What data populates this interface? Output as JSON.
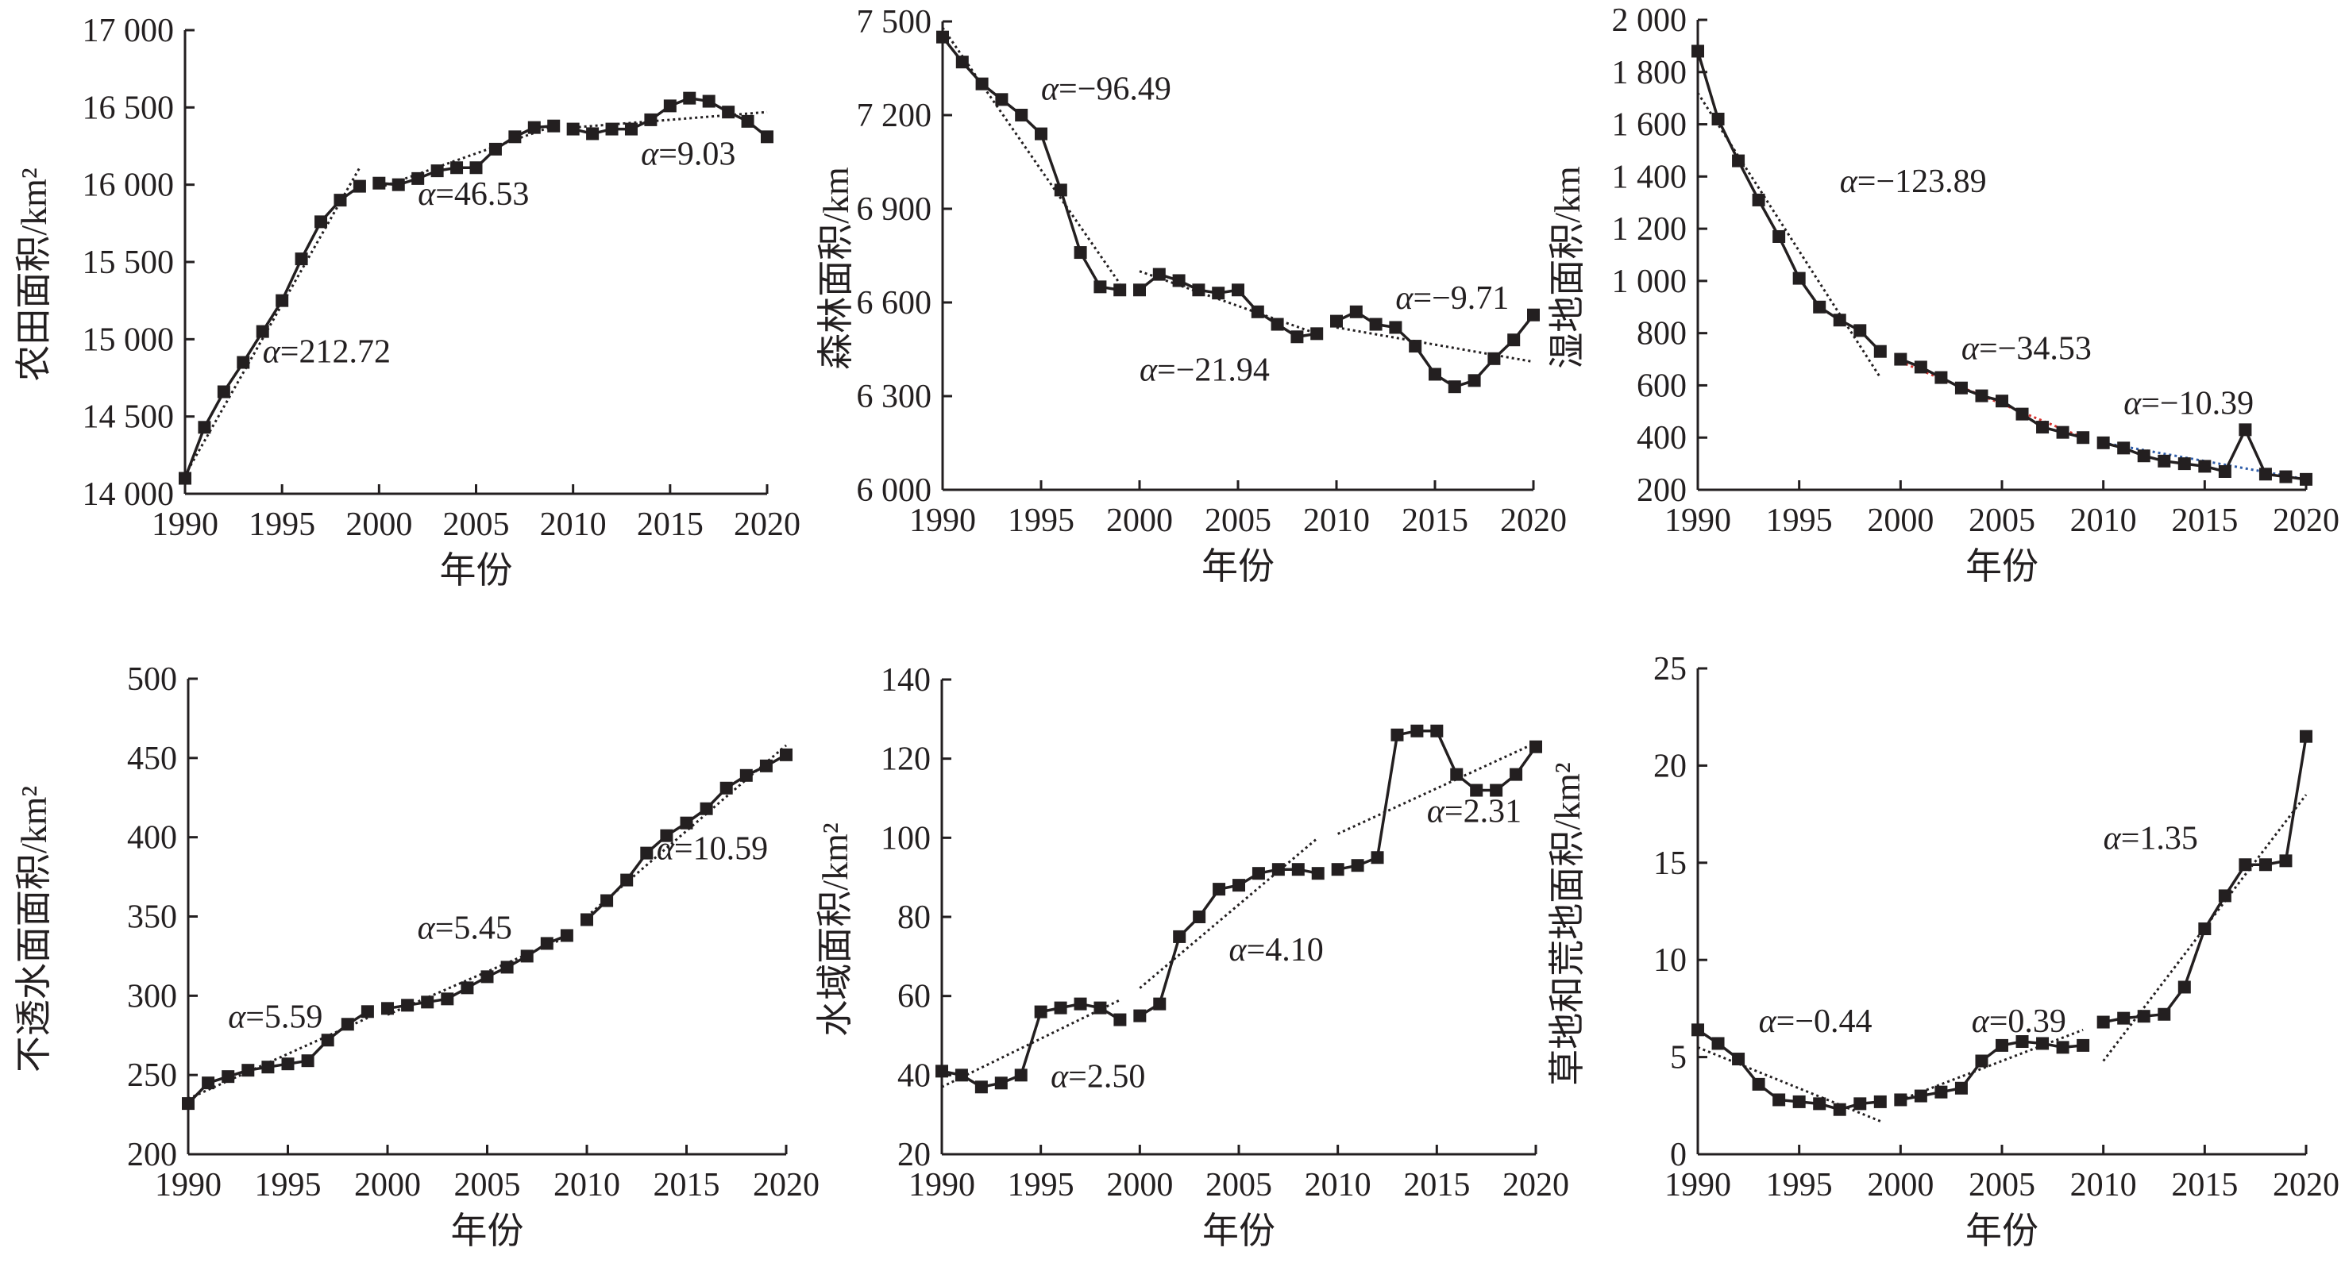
{
  "chart_data": [
    {
      "type": "line",
      "ylabel": "农田面积/km²",
      "xlabel": "年份",
      "xlim": [
        1990,
        2020
      ],
      "xticks": [
        1990,
        1995,
        2000,
        2005,
        2010,
        2015,
        2020
      ],
      "ylim": [
        14000,
        17000
      ],
      "yticks": [
        {
          "v": 14000,
          "label": "14 000"
        },
        {
          "v": 14500,
          "label": "14 500"
        },
        {
          "v": 15000,
          "label": "15 000"
        },
        {
          "v": 15500,
          "label": "15 500"
        },
        {
          "v": 16000,
          "label": "16 000"
        },
        {
          "v": 16500,
          "label": "16 500"
        },
        {
          "v": 17000,
          "label": "17 000"
        }
      ],
      "segments": [
        {
          "x": [
            1990,
            1991,
            1992,
            1993,
            1994,
            1995,
            1996,
            1997,
            1998,
            1999
          ],
          "y": [
            14100,
            14430,
            14660,
            14850,
            15050,
            15250,
            15520,
            15760,
            15900,
            15990
          ]
        },
        {
          "x": [
            2000,
            2001,
            2002,
            2003,
            2004,
            2005,
            2006,
            2007,
            2008,
            2009
          ],
          "y": [
            16010,
            16000,
            16040,
            16090,
            16110,
            16110,
            16230,
            16310,
            16370,
            16380
          ]
        },
        {
          "x": [
            2010,
            2011,
            2012,
            2013,
            2014,
            2015,
            2016,
            2017,
            2018,
            2019,
            2020
          ],
          "y": [
            16360,
            16330,
            16360,
            16360,
            16420,
            16510,
            16560,
            16540,
            16470,
            16410,
            16310
          ]
        }
      ],
      "trends": [
        {
          "x": [
            1990,
            1999
          ],
          "y": [
            14120,
            16110
          ]
        },
        {
          "x": [
            2000,
            2009
          ],
          "y": [
            15980,
            16380
          ]
        },
        {
          "x": [
            2010,
            2020
          ],
          "y": [
            16370,
            16470
          ]
        }
      ],
      "annotations": [
        {
          "prefix": "α",
          "text": "=212.72",
          "x": 1994,
          "y": 14850
        },
        {
          "prefix": "α",
          "text": "=46.53",
          "x": 2002,
          "y": 15870
        },
        {
          "prefix": "α",
          "text": "=9.03",
          "x": 2013.5,
          "y": 16130
        }
      ]
    },
    {
      "type": "line",
      "ylabel": "森林面积/km",
      "xlabel": "年份",
      "xlim": [
        1990,
        2020
      ],
      "xticks": [
        1990,
        1995,
        2000,
        2005,
        2010,
        2015,
        2020
      ],
      "ylim": [
        6000,
        7500
      ],
      "yticks": [
        {
          "v": 6000,
          "label": "6 000"
        },
        {
          "v": 6300,
          "label": "6 300"
        },
        {
          "v": 6600,
          "label": "6 600"
        },
        {
          "v": 6900,
          "label": "6 900"
        },
        {
          "v": 7200,
          "label": "7 200"
        },
        {
          "v": 7500,
          "label": "7 500"
        }
      ],
      "segments": [
        {
          "x": [
            1990,
            1991,
            1992,
            1993,
            1994,
            1995,
            1996,
            1997,
            1998,
            1999
          ],
          "y": [
            7450,
            7370,
            7300,
            7250,
            7200,
            7140,
            6960,
            6760,
            6650,
            6640
          ]
        },
        {
          "x": [
            2000,
            2001,
            2002,
            2003,
            2004,
            2005,
            2006,
            2007,
            2008,
            2009
          ],
          "y": [
            6640,
            6690,
            6670,
            6640,
            6630,
            6640,
            6570,
            6530,
            6490,
            6500
          ]
        },
        {
          "x": [
            2010,
            2011,
            2012,
            2013,
            2014,
            2015,
            2016,
            2017,
            2018,
            2019,
            2020
          ],
          "y": [
            6540,
            6570,
            6530,
            6520,
            6460,
            6370,
            6330,
            6350,
            6420,
            6480,
            6560
          ]
        }
      ],
      "trends": [
        {
          "x": [
            1990,
            1999
          ],
          "y": [
            7480,
            6660
          ]
        },
        {
          "x": [
            2000,
            2009
          ],
          "y": [
            6700,
            6500
          ]
        },
        {
          "x": [
            2010,
            2020
          ],
          "y": [
            6520,
            6410
          ]
        }
      ],
      "annotations": [
        {
          "prefix": "α",
          "text": "=−96.49",
          "x": 1995,
          "y": 7250
        },
        {
          "prefix": "α",
          "text": "=−21.94",
          "x": 2000,
          "y": 6350
        },
        {
          "prefix": "α",
          "text": "=−9.71",
          "x": 2013,
          "y": 6580
        }
      ]
    },
    {
      "type": "line",
      "ylabel": "湿地面积/km",
      "xlabel": "年份",
      "xlim": [
        1990,
        2020
      ],
      "xticks": [
        1990,
        1995,
        2000,
        2005,
        2010,
        2015,
        2020
      ],
      "ylim": [
        200,
        2000
      ],
      "yticks": [
        {
          "v": 200,
          "label": "200"
        },
        {
          "v": 400,
          "label": "400"
        },
        {
          "v": 600,
          "label": "600"
        },
        {
          "v": 800,
          "label": "800"
        },
        {
          "v": 1000,
          "label": "1 000"
        },
        {
          "v": 1200,
          "label": "1 200"
        },
        {
          "v": 1400,
          "label": "1 400"
        },
        {
          "v": 1600,
          "label": "1 600"
        },
        {
          "v": 1800,
          "label": "1 800"
        },
        {
          "v": 2000,
          "label": "2 000"
        }
      ],
      "segments": [
        {
          "x": [
            1990,
            1991,
            1992,
            1993,
            1994,
            1995,
            1996,
            1997,
            1998,
            1999
          ],
          "y": [
            1880,
            1620,
            1460,
            1310,
            1170,
            1010,
            900,
            850,
            810,
            730
          ]
        },
        {
          "x": [
            2000,
            2001,
            2002,
            2003,
            2004,
            2005,
            2006,
            2007,
            2008,
            2009
          ],
          "y": [
            700,
            670,
            630,
            590,
            560,
            540,
            490,
            440,
            420,
            400
          ]
        },
        {
          "x": [
            2010,
            2011,
            2012,
            2013,
            2014,
            2015,
            2016,
            2017,
            2018,
            2019,
            2020
          ],
          "y": [
            380,
            360,
            330,
            310,
            300,
            290,
            270,
            430,
            260,
            250,
            240
          ]
        }
      ],
      "trends": [
        {
          "x": [
            1990,
            1999
          ],
          "y": [
            1720,
            630
          ],
          "color": "#231f20"
        },
        {
          "x": [
            2000,
            2009
          ],
          "y": [
            690,
            400
          ],
          "color": "#d6322e"
        },
        {
          "x": [
            2010,
            2020
          ],
          "y": [
            380,
            240
          ],
          "color": "#2e5ca8"
        }
      ],
      "annotations": [
        {
          "prefix": "α",
          "text": "=−123.89",
          "x": 1997,
          "y": 1340
        },
        {
          "prefix": "α",
          "text": "=−34.53",
          "x": 2003,
          "y": 700
        },
        {
          "prefix": "α",
          "text": "=−10.39",
          "x": 2011,
          "y": 490
        }
      ]
    },
    {
      "type": "line",
      "ylabel": "不透水面面积/km²",
      "xlabel": "年份",
      "xlim": [
        1990,
        2020
      ],
      "xticks": [
        1990,
        1995,
        2000,
        2005,
        2010,
        2015,
        2020
      ],
      "ylim": [
        200,
        500
      ],
      "yticks": [
        {
          "v": 200,
          "label": "200"
        },
        {
          "v": 250,
          "label": "250"
        },
        {
          "v": 300,
          "label": "300"
        },
        {
          "v": 350,
          "label": "350"
        },
        {
          "v": 400,
          "label": "400"
        },
        {
          "v": 450,
          "label": "450"
        },
        {
          "v": 500,
          "label": "500"
        }
      ],
      "segments": [
        {
          "x": [
            1990,
            1991,
            1992,
            1993,
            1994,
            1995,
            1996,
            1997,
            1998,
            1999
          ],
          "y": [
            232,
            245,
            249,
            253,
            255,
            257,
            259,
            272,
            282,
            290
          ]
        },
        {
          "x": [
            2000,
            2001,
            2002,
            2003,
            2004,
            2005,
            2006,
            2007,
            2008,
            2009
          ],
          "y": [
            292,
            294,
            296,
            298,
            305,
            312,
            318,
            325,
            333,
            338
          ]
        },
        {
          "x": [
            2010,
            2011,
            2012,
            2013,
            2014,
            2015,
            2016,
            2017,
            2018,
            2019,
            2020
          ],
          "y": [
            348,
            360,
            373,
            390,
            401,
            409,
            418,
            431,
            439,
            445,
            452
          ]
        }
      ],
      "trends": [
        {
          "x": [
            1990,
            1999
          ],
          "y": [
            235,
            286
          ]
        },
        {
          "x": [
            2000,
            2009
          ],
          "y": [
            288,
            337
          ]
        },
        {
          "x": [
            2010,
            2020
          ],
          "y": [
            350,
            458
          ]
        }
      ],
      "annotations": [
        {
          "prefix": "α",
          "text": "=5.59",
          "x": 1992,
          "y": 280
        },
        {
          "prefix": "α",
          "text": "=5.45",
          "x": 2001.5,
          "y": 336
        },
        {
          "prefix": "α",
          "text": "=10.59",
          "x": 2013.5,
          "y": 386
        }
      ]
    },
    {
      "type": "line",
      "ylabel": "水域面积/km²",
      "xlabel": "年份",
      "xlim": [
        1990,
        2020
      ],
      "xticks": [
        1990,
        1995,
        2000,
        2005,
        2010,
        2015,
        2020
      ],
      "ylim": [
        20,
        140
      ],
      "yticks": [
        {
          "v": 20,
          "label": "20"
        },
        {
          "v": 40,
          "label": "40"
        },
        {
          "v": 60,
          "label": "60"
        },
        {
          "v": 80,
          "label": "80"
        },
        {
          "v": 100,
          "label": "100"
        },
        {
          "v": 120,
          "label": "120"
        },
        {
          "v": 140,
          "label": "140"
        }
      ],
      "segments": [
        {
          "x": [
            1990,
            1991,
            1992,
            1993,
            1994,
            1995,
            1996,
            1997,
            1998,
            1999
          ],
          "y": [
            41,
            40,
            37,
            38,
            40,
            56,
            57,
            58,
            57,
            54
          ]
        },
        {
          "x": [
            2000,
            2001,
            2002,
            2003,
            2004,
            2005,
            2006,
            2007,
            2008,
            2009
          ],
          "y": [
            55,
            58,
            75,
            80,
            87,
            88,
            91,
            92,
            92,
            91
          ]
        },
        {
          "x": [
            2010,
            2011,
            2012,
            2013,
            2014,
            2015,
            2016,
            2017,
            2018,
            2019,
            2020
          ],
          "y": [
            92,
            93,
            95,
            126,
            127,
            127,
            116,
            112,
            112,
            116,
            123
          ]
        }
      ],
      "trends": [
        {
          "x": [
            1990,
            1999
          ],
          "y": [
            37,
            59
          ]
        },
        {
          "x": [
            2000,
            2009
          ],
          "y": [
            62,
            100
          ]
        },
        {
          "x": [
            2010,
            2020
          ],
          "y": [
            101,
            124
          ]
        }
      ],
      "annotations": [
        {
          "prefix": "α",
          "text": "=2.50",
          "x": 1995.5,
          "y": 37
        },
        {
          "prefix": "α",
          "text": "=4.10",
          "x": 2004.5,
          "y": 69
        },
        {
          "prefix": "α",
          "text": "=2.31",
          "x": 2014.5,
          "y": 104
        }
      ]
    },
    {
      "type": "line",
      "ylabel": "草地和荒地面积/km²",
      "xlabel": "年份",
      "xlim": [
        1990,
        2020
      ],
      "xticks": [
        1990,
        1995,
        2000,
        2005,
        2010,
        2015,
        2020
      ],
      "ylim": [
        0,
        25
      ],
      "yticks": [
        {
          "v": 0,
          "label": "0"
        },
        {
          "v": 5,
          "label": "5"
        },
        {
          "v": 10,
          "label": "10"
        },
        {
          "v": 15,
          "label": "15"
        },
        {
          "v": 20,
          "label": "20"
        },
        {
          "v": 25,
          "label": "25"
        }
      ],
      "segments": [
        {
          "x": [
            1990,
            1991,
            1992,
            1993,
            1994,
            1995,
            1996,
            1997,
            1998,
            1999
          ],
          "y": [
            6.4,
            5.7,
            4.9,
            3.6,
            2.8,
            2.7,
            2.6,
            2.3,
            2.6,
            2.7
          ]
        },
        {
          "x": [
            2000,
            2001,
            2002,
            2003,
            2004,
            2005,
            2006,
            2007,
            2008,
            2009
          ],
          "y": [
            2.8,
            3.0,
            3.2,
            3.4,
            4.8,
            5.6,
            5.8,
            5.7,
            5.5,
            5.6
          ]
        },
        {
          "x": [
            2010,
            2011,
            2012,
            2013,
            2014,
            2015,
            2016,
            2017,
            2018,
            2019,
            2020
          ],
          "y": [
            6.8,
            7.0,
            7.1,
            7.2,
            8.6,
            11.6,
            13.3,
            14.9,
            14.9,
            15.1,
            21.5
          ]
        }
      ],
      "trends": [
        {
          "x": [
            1990,
            1999
          ],
          "y": [
            5.5,
            1.7
          ]
        },
        {
          "x": [
            2000,
            2009
          ],
          "y": [
            2.8,
            6.4
          ]
        },
        {
          "x": [
            2010,
            2020
          ],
          "y": [
            4.8,
            18.5
          ]
        }
      ],
      "annotations": [
        {
          "prefix": "α",
          "text": "=−0.44",
          "x": 1993,
          "y": 6.3
        },
        {
          "prefix": "α",
          "text": "=0.39",
          "x": 2003.5,
          "y": 6.3
        },
        {
          "prefix": "α",
          "text": "=1.35",
          "x": 2010,
          "y": 15.7
        }
      ]
    }
  ]
}
